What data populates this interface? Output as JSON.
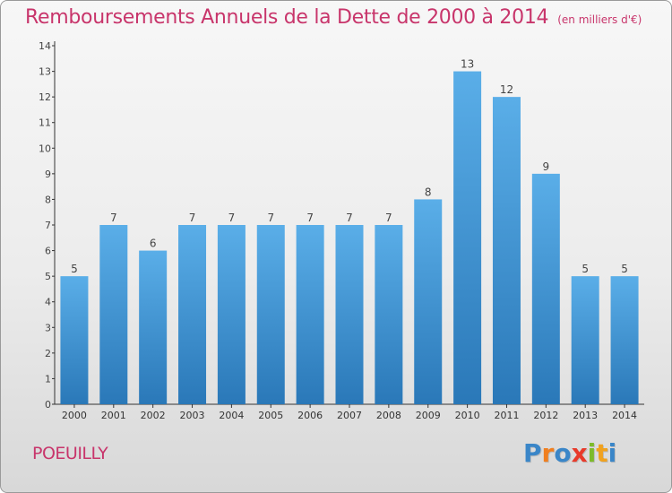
{
  "header": {
    "title": "Remboursements Annuels de la Dette de 2000 à 2014",
    "subtitle": "(en milliers d'€)"
  },
  "footer": {
    "commune": "POEUILLY",
    "logo_letters": [
      "P",
      "r",
      "o",
      "x",
      "i",
      "t",
      "i"
    ]
  },
  "colors": {
    "title": "#c8356b",
    "bar_top": "#5aaee8",
    "bar_bottom": "#2a78b8",
    "logo": [
      "#3a86c8",
      "#f07f1f",
      "#3a86c8",
      "#e83a2a",
      "#7dbb2a",
      "#f0a21f",
      "#3a86c8"
    ]
  },
  "chart_data": {
    "type": "bar",
    "categories": [
      "2000",
      "2001",
      "2002",
      "2003",
      "2004",
      "2005",
      "2006",
      "2007",
      "2008",
      "2009",
      "2010",
      "2011",
      "2012",
      "2013",
      "2014"
    ],
    "values": [
      5,
      7,
      6,
      7,
      7,
      7,
      7,
      7,
      7,
      8,
      13,
      12,
      9,
      5,
      5
    ],
    "ylim": [
      0,
      14
    ],
    "yticks": [
      0,
      1,
      2,
      3,
      4,
      5,
      6,
      7,
      8,
      9,
      10,
      11,
      12,
      13,
      14
    ],
    "grid": false,
    "data_labels": true
  }
}
